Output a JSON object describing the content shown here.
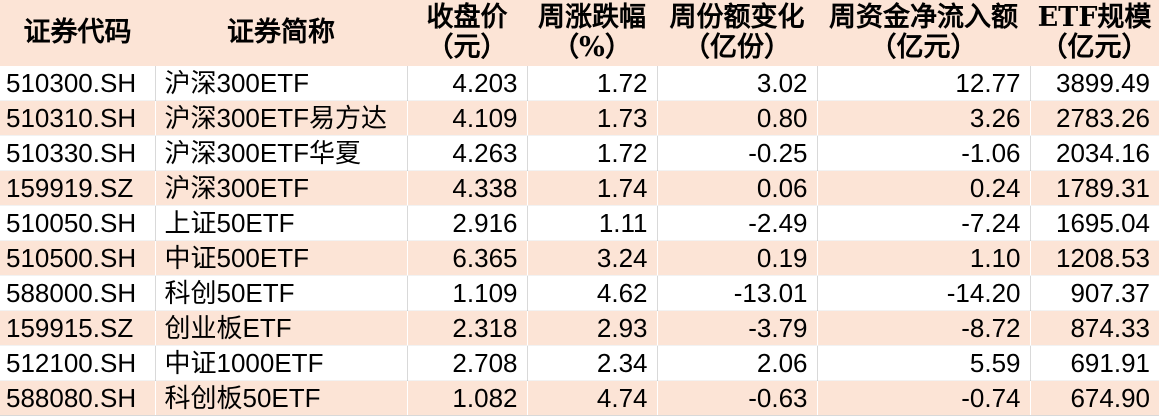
{
  "chart_data": {
    "type": "table",
    "title": "ETF weekly fund flow table",
    "columns": [
      {
        "id": "code",
        "line1": "证券代码",
        "line2": ""
      },
      {
        "id": "name",
        "line1": "证券简称",
        "line2": ""
      },
      {
        "id": "close",
        "line1": "收盘价",
        "line2": "（元）"
      },
      {
        "id": "chg",
        "line1": "周涨跌幅",
        "line2": "（%）"
      },
      {
        "id": "share",
        "line1": "周份额变化",
        "line2": "（亿份）"
      },
      {
        "id": "inflow",
        "line1": "周资金净流入额",
        "line2": "（亿元）"
      },
      {
        "id": "scale",
        "line1": "ETF规模",
        "line2": "（亿元）"
      }
    ],
    "rows": [
      {
        "code": "510300.SH",
        "name": "沪深300ETF",
        "close": "4.203",
        "chg": "1.72",
        "share": "3.02",
        "inflow": "12.77",
        "scale": "3899.49"
      },
      {
        "code": "510310.SH",
        "name": "沪深300ETF易方达",
        "close": "4.109",
        "chg": "1.73",
        "share": "0.80",
        "inflow": "3.26",
        "scale": "2783.26"
      },
      {
        "code": "510330.SH",
        "name": "沪深300ETF华夏",
        "close": "4.263",
        "chg": "1.72",
        "share": "-0.25",
        "inflow": "-1.06",
        "scale": "2034.16"
      },
      {
        "code": "159919.SZ",
        "name": "沪深300ETF",
        "close": "4.338",
        "chg": "1.74",
        "share": "0.06",
        "inflow": "0.24",
        "scale": "1789.31"
      },
      {
        "code": "510050.SH",
        "name": "上证50ETF",
        "close": "2.916",
        "chg": "1.11",
        "share": "-2.49",
        "inflow": "-7.24",
        "scale": "1695.04"
      },
      {
        "code": "510500.SH",
        "name": "中证500ETF",
        "close": "6.365",
        "chg": "3.24",
        "share": "0.19",
        "inflow": "1.10",
        "scale": "1208.53"
      },
      {
        "code": "588000.SH",
        "name": "科创50ETF",
        "close": "1.109",
        "chg": "4.62",
        "share": "-13.01",
        "inflow": "-14.20",
        "scale": "907.37"
      },
      {
        "code": "159915.SZ",
        "name": "创业板ETF",
        "close": "2.318",
        "chg": "2.93",
        "share": "-3.79",
        "inflow": "-8.72",
        "scale": "874.33"
      },
      {
        "code": "512100.SH",
        "name": "中证1000ETF",
        "close": "2.708",
        "chg": "2.34",
        "share": "2.06",
        "inflow": "5.59",
        "scale": "691.91"
      },
      {
        "code": "588080.SH",
        "name": "科创板50ETF",
        "close": "1.082",
        "chg": "4.74",
        "share": "-0.63",
        "inflow": "-0.74",
        "scale": "674.90"
      }
    ]
  },
  "colors": {
    "header_bg": "#fce4d6",
    "stripe_bg": "#fce4d6",
    "row_bg": "#ffffff",
    "border": "#d9d9d9",
    "text": "#000000"
  }
}
